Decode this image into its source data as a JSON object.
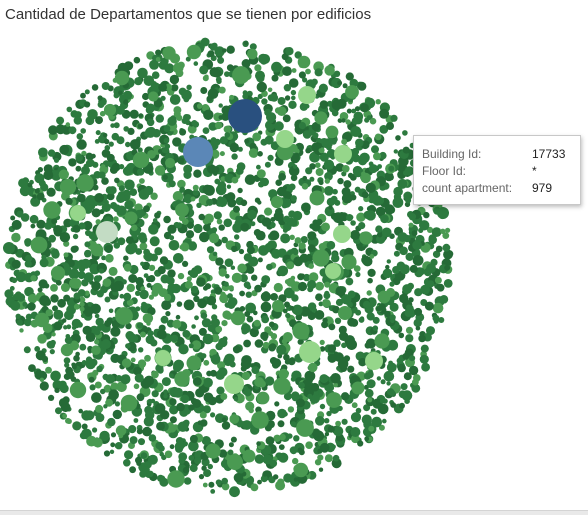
{
  "chart_data": {
    "type": "bubble",
    "title": "Cantidad de Departamentos que se tienen por edificios",
    "highlighted_buildings": [
      {
        "building_id": "17733",
        "count_apartment": 979
      }
    ],
    "colors": {
      "largest": "#29507f",
      "large": "#5b87b7",
      "medium_light": "#95d68a",
      "pale": "#c3dcc4",
      "mid": "#4a9a52",
      "base": "#2d7a3f",
      "dark": "#256a36"
    }
  },
  "tooltip": {
    "rows": [
      {
        "label": "Building Id:",
        "value": "17733"
      },
      {
        "label": "Floor Id:",
        "value": "*"
      },
      {
        "label": "count apartment:",
        "value": "979"
      }
    ]
  }
}
